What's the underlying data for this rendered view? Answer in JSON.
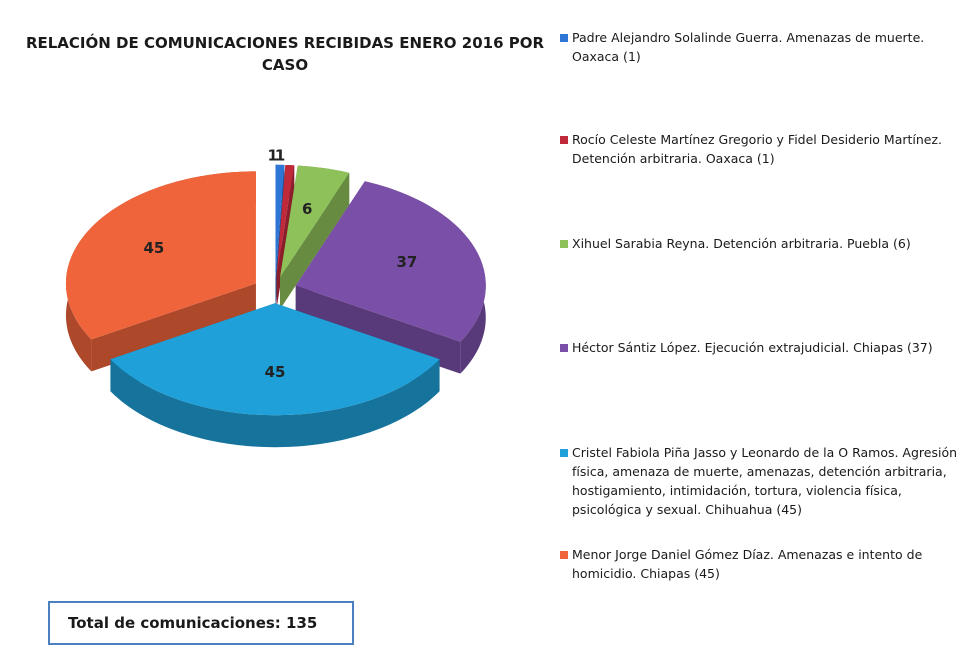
{
  "chart_data": {
    "type": "pie",
    "title": "RELACIÓN DE COMUNICACIONES  RECIBIDAS ENERO 2016 POR CASO",
    "categories": [
      "Padre Alejandro Solalinde Guerra. Amenazas de muerte. Oaxaca (1)",
      "Rocío Celeste Martínez Gregorio y Fidel Desiderio Martínez. Detención arbitraria. Oaxaca (1)",
      "Xihuel Sarabia Reyna. Detención arbitraria. Puebla (6)",
      "Héctor Sántiz López. Ejecución extrajudicial. Chiapas (37)",
      "Cristel Fabiola Piña Jasso y Leonardo de la O Ramos. Agresión física, amenaza de muerte, amenazas, detención arbitraria, hostigamiento, intimidación, tortura, violencia física, psicológica y sexual. Chihuahua (45)",
      "Menor Jorge Daniel Gómez Díaz. Amenazas e intento de homicidio. Chiapas (45)"
    ],
    "values": [
      1,
      1,
      6,
      37,
      45,
      45
    ],
    "colors": [
      "#2e75d6",
      "#c0293a",
      "#8fc15a",
      "#7a4fa8",
      "#1fa0d8",
      "#f0643c"
    ],
    "annotation": "Total de comunicaciones: 135"
  }
}
